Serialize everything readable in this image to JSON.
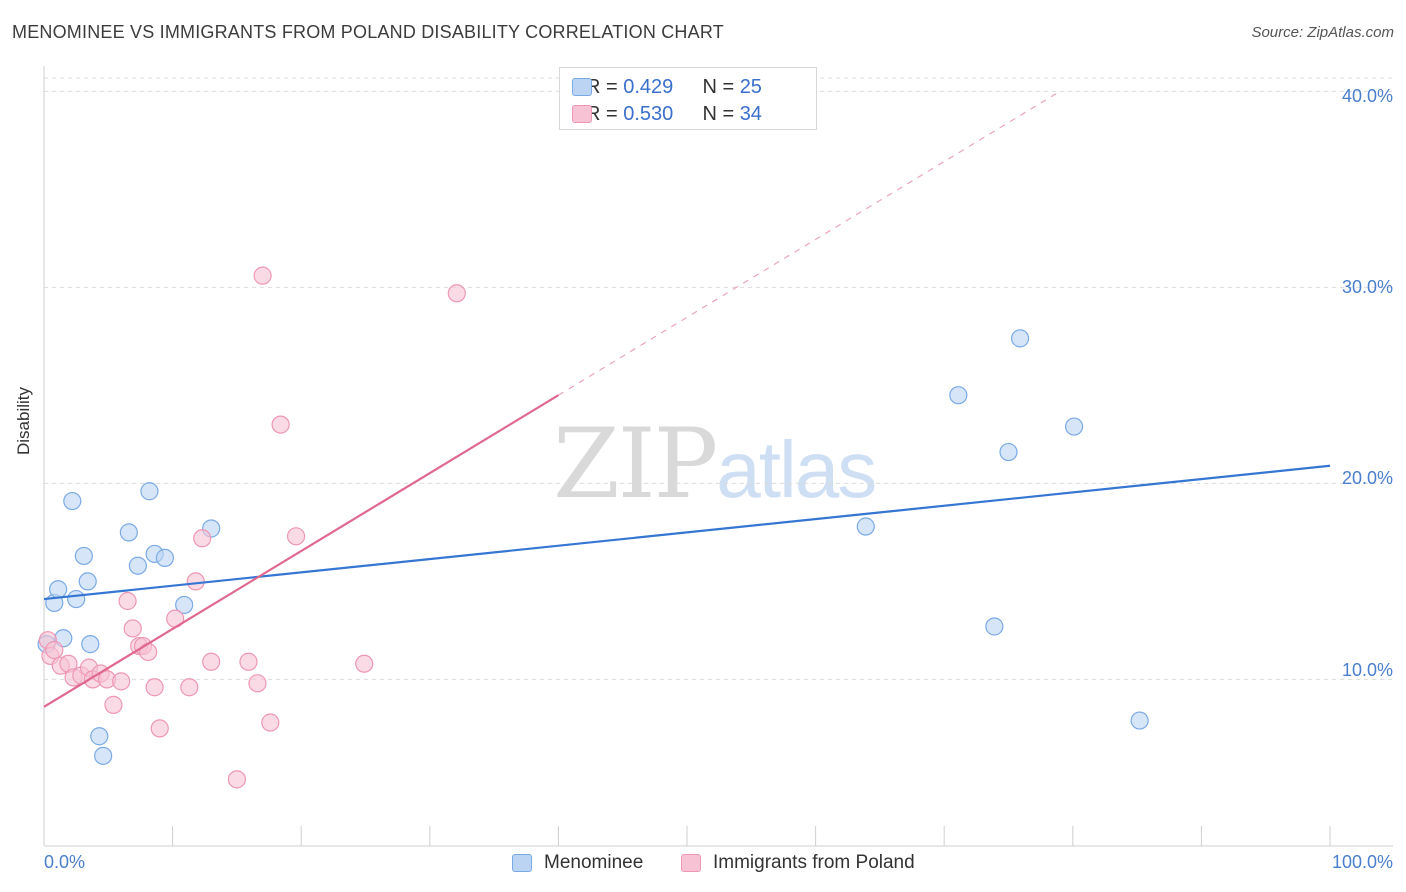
{
  "title": "MENOMINEE VS IMMIGRANTS FROM POLAND DISABILITY CORRELATION CHART",
  "source": "Source: ZipAtlas.com",
  "watermark": {
    "zip": "ZIP",
    "atlas": "atlas"
  },
  "colors": {
    "blue_fill": "#bcd4f4",
    "blue_stroke": "#7aaae6",
    "blue_line": "#3576d2",
    "pink_fill": "#f7c3d4",
    "pink_stroke": "#ee97b3",
    "pink_line": "#e0688f"
  },
  "stats": [
    {
      "r_label": "R = ",
      "r_value": "0.429",
      "n_label": "N = ",
      "n_value": "25"
    },
    {
      "r_label": "R = ",
      "r_value": "0.530",
      "n_label": "N = ",
      "n_value": "34"
    }
  ],
  "chart_data": {
    "type": "scatter",
    "title": "MENOMINEE VS IMMIGRANTS FROM POLAND DISABILITY CORRELATION CHART",
    "xlabel": "",
    "ylabel": "Disability",
    "xlim": [
      0,
      100
    ],
    "ylim": [
      1.5,
      41.5
    ],
    "x_tick_labels": [
      "0.0%",
      "100.0%"
    ],
    "y_ticks": [
      10,
      20,
      30,
      40
    ],
    "y_tick_labels": [
      "10.0%",
      "20.0%",
      "30.0%",
      "40.0%"
    ],
    "grid": true,
    "legend": "bottom-center",
    "series": [
      {
        "name": "Menominee",
        "color": "blue",
        "points": [
          [
            0.2,
            11.8
          ],
          [
            0.8,
            13.9
          ],
          [
            1.1,
            14.6
          ],
          [
            1.5,
            12.1
          ],
          [
            2.2,
            19.1
          ],
          [
            2.5,
            14.1
          ],
          [
            3.1,
            16.3
          ],
          [
            3.4,
            15.0
          ],
          [
            3.6,
            11.8
          ],
          [
            4.3,
            7.1
          ],
          [
            4.6,
            6.1
          ],
          [
            6.6,
            17.5
          ],
          [
            7.3,
            15.8
          ],
          [
            8.2,
            19.6
          ],
          [
            8.6,
            16.4
          ],
          [
            9.4,
            16.2
          ],
          [
            10.9,
            13.8
          ],
          [
            13.0,
            17.7
          ],
          [
            63.9,
            17.8
          ],
          [
            71.1,
            24.5
          ],
          [
            73.9,
            12.7
          ],
          [
            75.0,
            21.6
          ],
          [
            75.9,
            27.4
          ],
          [
            80.1,
            22.9
          ],
          [
            85.2,
            7.9
          ]
        ],
        "trend": {
          "x": [
            0,
            100
          ],
          "y": [
            14.1,
            20.9
          ]
        }
      },
      {
        "name": "Immigrants from Poland",
        "color": "pink",
        "points": [
          [
            0.3,
            12.0
          ],
          [
            0.5,
            11.2
          ],
          [
            0.8,
            11.5
          ],
          [
            1.3,
            10.7
          ],
          [
            1.9,
            10.8
          ],
          [
            2.3,
            10.1
          ],
          [
            2.9,
            10.2
          ],
          [
            3.5,
            10.6
          ],
          [
            3.8,
            10.0
          ],
          [
            4.4,
            10.3
          ],
          [
            4.9,
            10.0
          ],
          [
            5.4,
            8.7
          ],
          [
            6.0,
            9.9
          ],
          [
            6.5,
            14.0
          ],
          [
            6.9,
            12.6
          ],
          [
            7.4,
            11.7
          ],
          [
            7.7,
            11.7
          ],
          [
            8.1,
            11.4
          ],
          [
            8.6,
            9.6
          ],
          [
            9.0,
            7.5
          ],
          [
            10.2,
            13.1
          ],
          [
            11.3,
            9.6
          ],
          [
            11.8,
            15.0
          ],
          [
            12.3,
            17.2
          ],
          [
            13.0,
            10.9
          ],
          [
            15.0,
            4.9
          ],
          [
            15.9,
            10.9
          ],
          [
            16.6,
            9.8
          ],
          [
            17.0,
            30.6
          ],
          [
            17.6,
            7.8
          ],
          [
            18.4,
            23.0
          ],
          [
            19.6,
            17.3
          ],
          [
            24.9,
            10.8
          ],
          [
            32.1,
            29.7
          ]
        ],
        "trend": {
          "x": [
            0,
            40
          ],
          "y": [
            8.6,
            24.5
          ]
        },
        "trend_extension": {
          "x": [
            40,
            79
          ],
          "y": [
            24.5,
            40.0
          ]
        }
      }
    ]
  }
}
